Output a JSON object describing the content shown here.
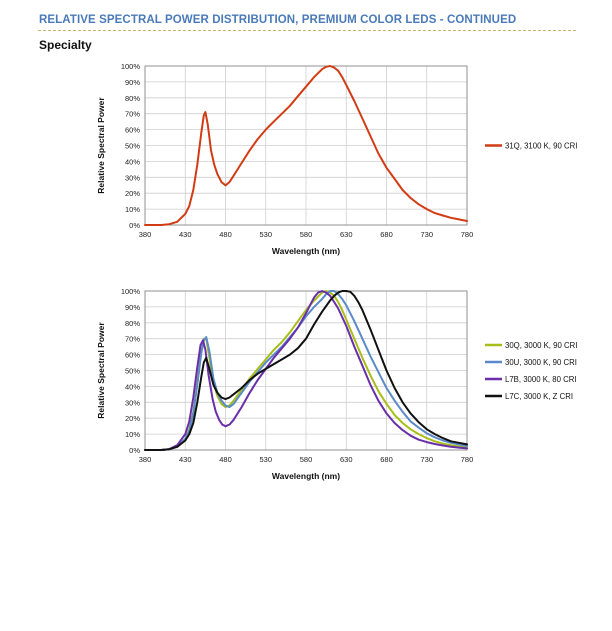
{
  "header": {
    "title": "RELATIVE SPECTRAL POWER DISTRIBUTION, PREMIUM COLOR LEDS - CONTINUED",
    "section": "Specialty",
    "rule_color": "#c9b46a",
    "title_color": "#4a7ab8"
  },
  "chart_data": [
    {
      "type": "line",
      "xlabel": "Wavelength (nm)",
      "ylabel": "Relative Spectral Power",
      "xlim": [
        380,
        780
      ],
      "ylim": [
        0,
        100
      ],
      "x_ticks": [
        "380",
        "430",
        "480",
        "530",
        "580",
        "630",
        "680",
        "730",
        "780"
      ],
      "y_ticks": [
        "0%",
        "10%",
        "20%",
        "30%",
        "40%",
        "50%",
        "60%",
        "70%",
        "80%",
        "90%",
        "100%"
      ],
      "grid": true,
      "legend": "right",
      "series": [
        {
          "name": "31Q, 3100 K, 90 CRI",
          "color": "#d23c14",
          "x": [
            380,
            400,
            410,
            420,
            430,
            435,
            440,
            445,
            450,
            453,
            455,
            458,
            462,
            466,
            470,
            475,
            480,
            485,
            490,
            500,
            510,
            520,
            530,
            540,
            550,
            560,
            570,
            580,
            590,
            600,
            605,
            610,
            615,
            620,
            625,
            630,
            640,
            650,
            660,
            670,
            680,
            690,
            700,
            710,
            720,
            730,
            740,
            750,
            760,
            770,
            780
          ],
          "y": [
            0,
            0,
            0.5,
            2,
            7,
            12,
            22,
            38,
            58,
            69,
            71,
            63,
            47,
            38,
            32,
            27,
            25,
            27,
            31,
            39,
            47,
            54,
            60,
            65,
            70,
            75,
            81,
            87,
            93,
            98,
            99.5,
            100,
            99,
            97,
            93,
            88,
            78,
            67,
            56,
            45,
            36,
            29,
            22,
            17,
            13,
            10,
            7.5,
            6,
            4.5,
            3.5,
            2.5
          ]
        }
      ]
    },
    {
      "type": "line",
      "xlabel": "Wavelength (nm)",
      "ylabel": "Relative Spectral Power",
      "xlim": [
        380,
        780
      ],
      "ylim": [
        0,
        100
      ],
      "x_ticks": [
        "380",
        "430",
        "480",
        "530",
        "580",
        "630",
        "680",
        "730",
        "780"
      ],
      "y_ticks": [
        "0%",
        "10%",
        "20%",
        "30%",
        "40%",
        "50%",
        "60%",
        "70%",
        "80%",
        "90%",
        "100%"
      ],
      "grid": true,
      "legend": "right",
      "series": [
        {
          "name": "30Q, 3000 K, 90 CRI",
          "color": "#a8bd1a",
          "x": [
            380,
            400,
            410,
            420,
            430,
            435,
            440,
            445,
            450,
            453,
            456,
            460,
            465,
            470,
            475,
            480,
            485,
            490,
            500,
            510,
            520,
            530,
            540,
            550,
            560,
            570,
            580,
            590,
            600,
            605,
            610,
            615,
            620,
            625,
            630,
            640,
            650,
            660,
            670,
            680,
            690,
            700,
            710,
            720,
            730,
            740,
            750,
            760,
            770,
            780
          ],
          "y": [
            0,
            0,
            0.5,
            2,
            7,
            13,
            24,
            42,
            62,
            70,
            70,
            58,
            42,
            34,
            29,
            27,
            28,
            31,
            38,
            45,
            51,
            57,
            63,
            68,
            74,
            81,
            88,
            94,
            99,
            100,
            99,
            97,
            93,
            88,
            82,
            70,
            58,
            47,
            37,
            29,
            22,
            17,
            13,
            10,
            7.5,
            5.5,
            4,
            3,
            2.2,
            1.5
          ]
        },
        {
          "name": "30U, 3000 K, 90 CRI",
          "color": "#5a8ac8",
          "x": [
            380,
            400,
            410,
            420,
            430,
            435,
            440,
            445,
            450,
            453,
            456,
            460,
            465,
            470,
            475,
            480,
            485,
            490,
            500,
            510,
            520,
            530,
            540,
            550,
            560,
            570,
            580,
            590,
            600,
            605,
            610,
            615,
            620,
            625,
            630,
            640,
            650,
            660,
            670,
            680,
            690,
            700,
            710,
            720,
            730,
            740,
            750,
            760,
            770,
            780
          ],
          "y": [
            0,
            0,
            0.5,
            2,
            7,
            12,
            23,
            41,
            61,
            69,
            71,
            62,
            45,
            36,
            31,
            28,
            27,
            29,
            36,
            43,
            49,
            55,
            60,
            65,
            71,
            77,
            84,
            90,
            95,
            98,
            100,
            100,
            98,
            95,
            91,
            81,
            70,
            59,
            49,
            39,
            31,
            24,
            18,
            14,
            10.5,
            8,
            6,
            4.5,
            3.5,
            2.5
          ]
        },
        {
          "name": "L7B, 3000 K, 80 CRI",
          "color": "#6a2ea8",
          "x": [
            380,
            400,
            410,
            420,
            430,
            435,
            440,
            445,
            449,
            452,
            455,
            459,
            464,
            468,
            472,
            476,
            480,
            485,
            490,
            500,
            510,
            520,
            530,
            540,
            550,
            560,
            570,
            580,
            585,
            590,
            595,
            600,
            605,
            610,
            615,
            620,
            630,
            640,
            650,
            660,
            670,
            680,
            690,
            700,
            710,
            720,
            730,
            740,
            750,
            760,
            770,
            780
          ],
          "y": [
            0,
            0,
            0.5,
            3,
            10,
            18,
            33,
            52,
            66,
            69,
            63,
            47,
            32,
            24,
            19,
            16,
            15,
            16,
            19,
            27,
            36,
            44,
            51,
            58,
            64,
            70,
            77,
            86,
            91,
            96,
            99,
            100,
            99,
            97,
            93,
            89,
            78,
            65,
            53,
            41,
            31,
            23,
            17,
            12.5,
            9,
            6.5,
            5,
            3.8,
            2.8,
            2,
            1.5,
            1
          ]
        },
        {
          "name": "L7C, 3000 K, Z CRI",
          "color": "#111111",
          "x": [
            380,
            400,
            410,
            420,
            430,
            435,
            440,
            445,
            450,
            453,
            456,
            460,
            465,
            470,
            475,
            480,
            485,
            490,
            500,
            510,
            520,
            530,
            540,
            550,
            560,
            570,
            580,
            590,
            600,
            610,
            615,
            620,
            625,
            630,
            635,
            640,
            645,
            650,
            660,
            670,
            680,
            690,
            700,
            710,
            720,
            730,
            740,
            750,
            760,
            770,
            780
          ],
          "y": [
            0,
            0,
            0.5,
            2,
            6,
            10,
            17,
            30,
            46,
            55,
            58,
            51,
            41,
            36,
            33,
            32,
            33,
            35,
            39,
            44,
            48,
            51,
            54,
            57,
            60,
            64,
            70,
            79,
            87,
            94,
            97,
            99,
            100,
            100,
            99.5,
            97,
            93,
            88,
            76,
            63,
            50,
            39,
            30,
            23,
            17.5,
            13,
            10,
            7.5,
            5.5,
            4.5,
            3.5
          ]
        }
      ]
    }
  ]
}
